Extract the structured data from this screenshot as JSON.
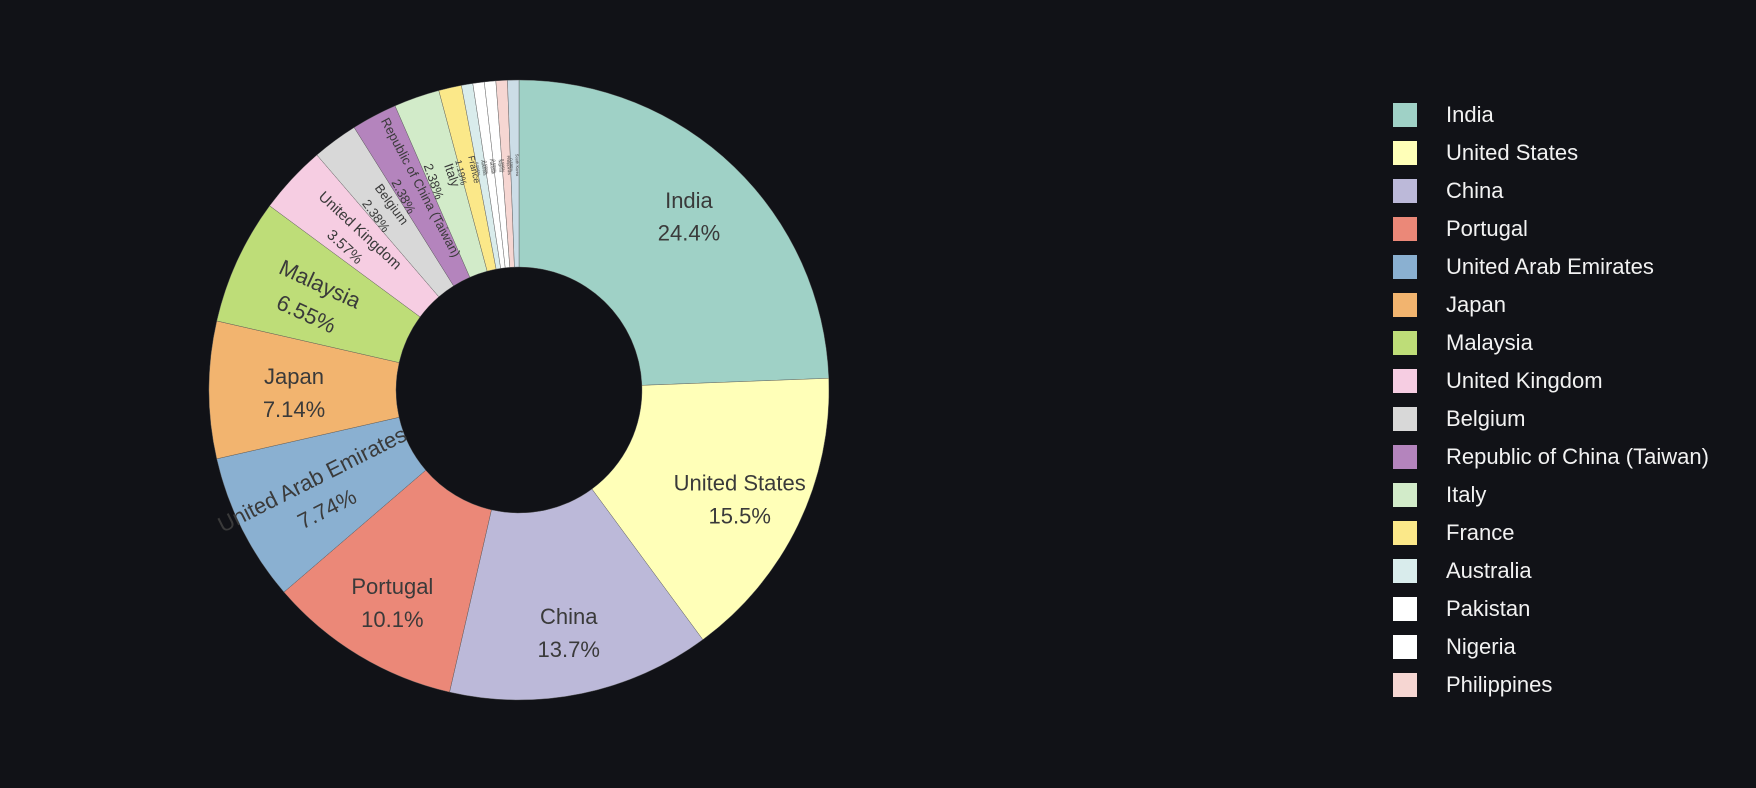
{
  "chart_data": {
    "type": "pie",
    "donut": true,
    "legend_position": "right",
    "slices": [
      {
        "label": "India",
        "text": "24.4%",
        "value": 24.4,
        "color": "#9fd1c6"
      },
      {
        "label": "United States",
        "text": "15.5%",
        "value": 15.5,
        "color": "#ffffb8"
      },
      {
        "label": "China",
        "text": "13.7%",
        "value": 13.7,
        "color": "#bcb9d9"
      },
      {
        "label": "Portugal",
        "text": "10.1%",
        "value": 10.1,
        "color": "#eb8878"
      },
      {
        "label": "United Arab Emirates",
        "text": "7.74%",
        "value": 7.74,
        "color": "#8ab0d1"
      },
      {
        "label": "Japan",
        "text": "7.14%",
        "value": 7.14,
        "color": "#f2b46f"
      },
      {
        "label": "Malaysia",
        "text": "6.55%",
        "value": 6.55,
        "color": "#bedd78"
      },
      {
        "label": "United Kingdom",
        "text": "3.57%",
        "value": 3.57,
        "color": "#f6cde2"
      },
      {
        "label": "Belgium",
        "text": "2.38%",
        "value": 2.38,
        "color": "#d8d8d8"
      },
      {
        "label": "Republic of China (Taiwan)",
        "text": "2.38%",
        "value": 2.38,
        "color": "#b484bd"
      },
      {
        "label": "Italy",
        "text": "2.38%",
        "value": 2.38,
        "color": "#d2ebc9"
      },
      {
        "label": "France",
        "text": "1.19%",
        "value": 1.19,
        "color": "#fbe889"
      },
      {
        "label": "Australia",
        "text": "0.595%",
        "value": 0.595,
        "color": "#d9ecec"
      },
      {
        "label": "Pakistan",
        "text": "0.595%",
        "value": 0.595,
        "color": "#ffffff"
      },
      {
        "label": "Nigeria",
        "text": "0.595%",
        "value": 0.595,
        "color": "#ffffff"
      },
      {
        "label": "Philippines",
        "text": "0.595%",
        "value": 0.595,
        "color": "#f6d6d2"
      },
      {
        "label": "South Korea",
        "text": "0.595%",
        "value": 0.595,
        "color": "#ccdde7"
      }
    ],
    "legend": [
      {
        "label": "India",
        "color": "#9fd1c6"
      },
      {
        "label": "United States",
        "color": "#ffffb8"
      },
      {
        "label": "China",
        "color": "#bcb9d9"
      },
      {
        "label": "Portugal",
        "color": "#eb8878"
      },
      {
        "label": "United Arab Emirates",
        "color": "#8ab0d1"
      },
      {
        "label": "Japan",
        "color": "#f2b46f"
      },
      {
        "label": "Malaysia",
        "color": "#bedd78"
      },
      {
        "label": "United Kingdom",
        "color": "#f6cde2"
      },
      {
        "label": "Belgium",
        "color": "#d8d8d8"
      },
      {
        "label": "Republic of China (Taiwan)",
        "color": "#b484bd"
      },
      {
        "label": "Italy",
        "color": "#d2ebc9"
      },
      {
        "label": "France",
        "color": "#fbe889"
      },
      {
        "label": "Australia",
        "color": "#d9ecec"
      },
      {
        "label": "Pakistan",
        "color": "#ffffff"
      },
      {
        "label": "Nigeria",
        "color": "#ffffff"
      },
      {
        "label": "Philippines",
        "color": "#f6d6d2"
      }
    ]
  }
}
